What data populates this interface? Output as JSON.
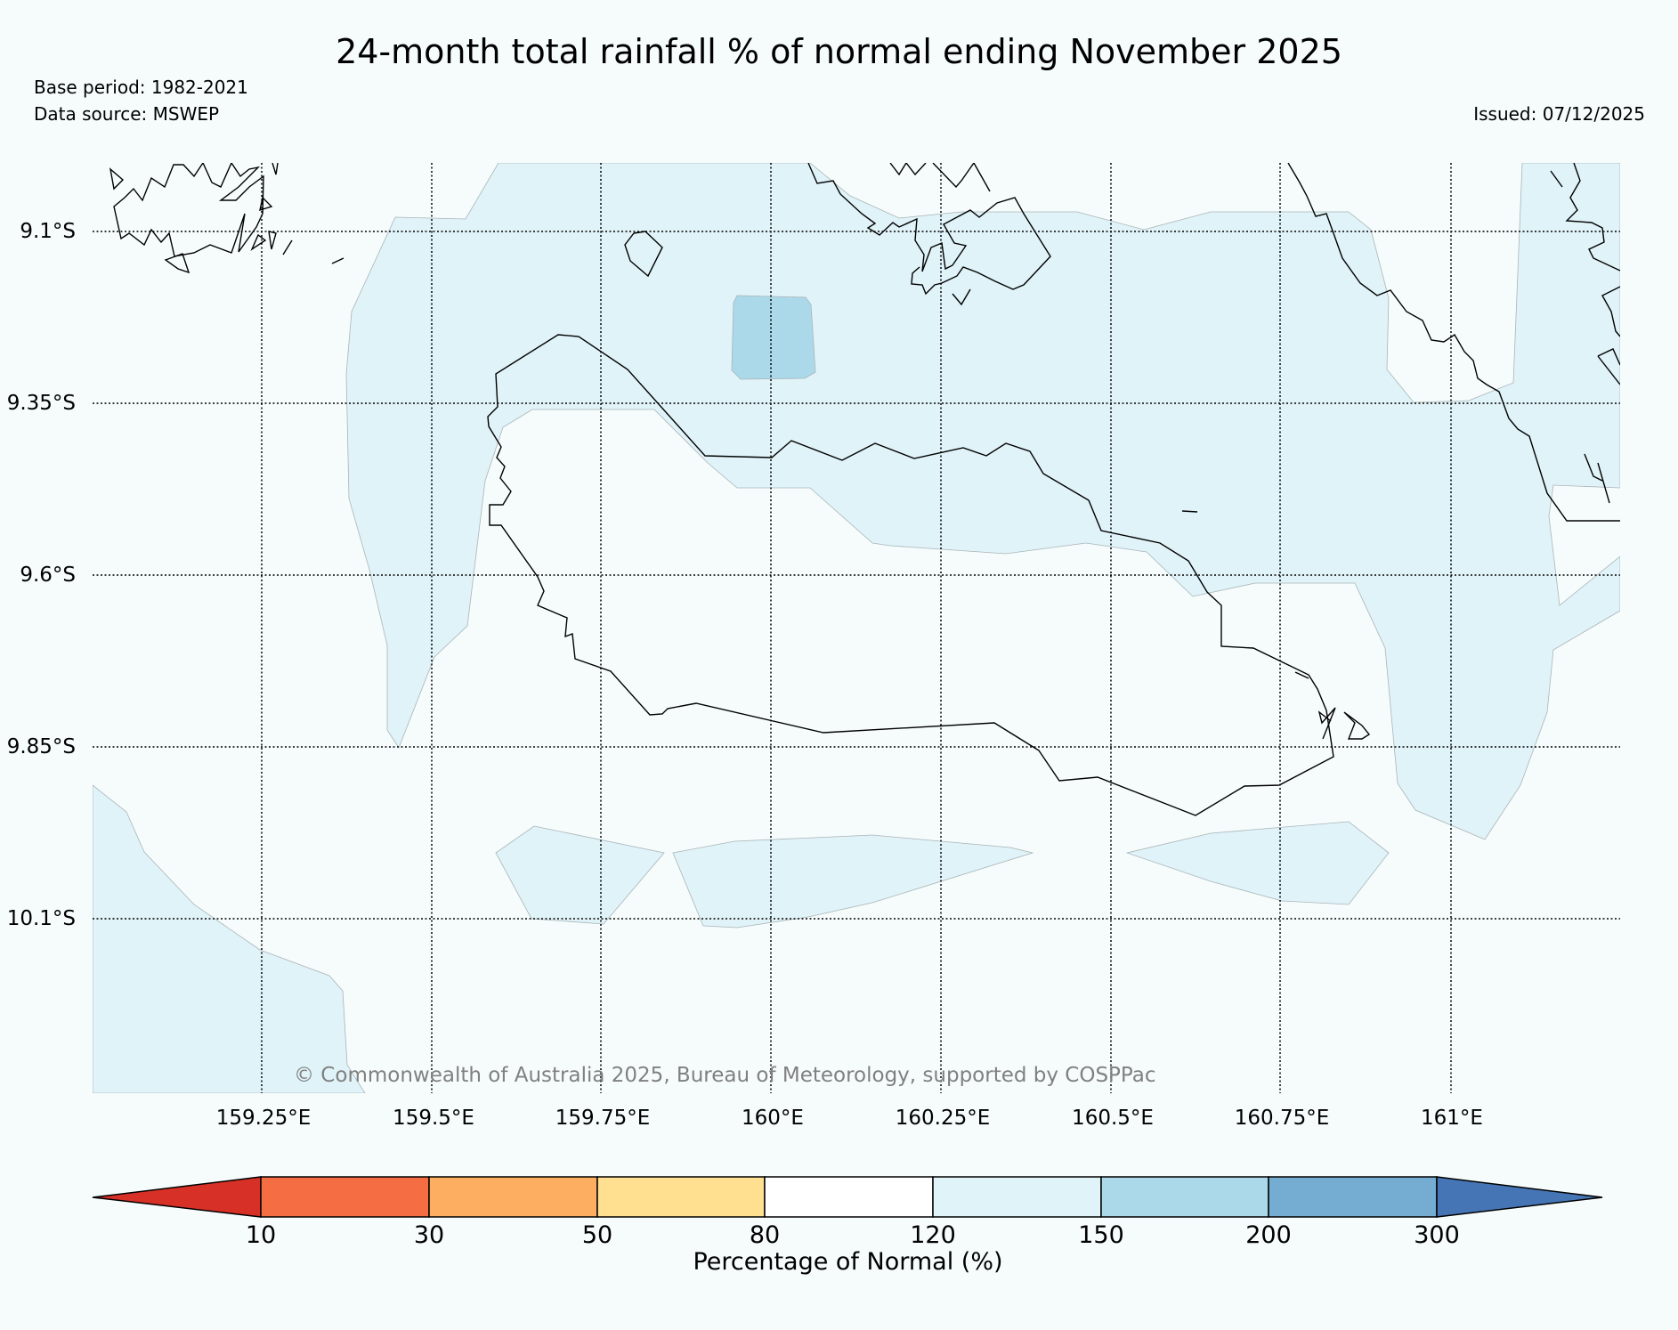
{
  "header": {
    "title": "24-month total rainfall % of normal ending November 2025",
    "base_period": "Base period: 1982-2021",
    "data_source": "Data source: MSWEP",
    "issued": "Issued: 07/12/2025"
  },
  "map": {
    "longitude_labels": [
      "159.25°E",
      "159.5°E",
      "159.75°E",
      "160°E",
      "160.25°E",
      "160.5°E",
      "160.75°E",
      "161°E"
    ],
    "latitude_labels": [
      "9.1°S",
      "9.35°S",
      "9.6°S",
      "9.85°S",
      "10.1°S"
    ],
    "credit": "© Commonwealth of Australia 2025, Bureau of Meteorology, supported by COSPPac"
  },
  "legend": {
    "title": "Percentage of Normal (%)",
    "ticks": [
      "10",
      "30",
      "50",
      "80",
      "120",
      "150",
      "200",
      "300"
    ],
    "colors": [
      "#d73027",
      "#f46d43",
      "#fdae61",
      "#fee090",
      "#ffffff",
      "#e0f3f8",
      "#abd9e9",
      "#74add1",
      "#4575b4"
    ]
  },
  "colors": {
    "background": "#f6fcfc",
    "class_120_150": "#e0f3f8",
    "class_150_200": "#abd9e9"
  }
}
